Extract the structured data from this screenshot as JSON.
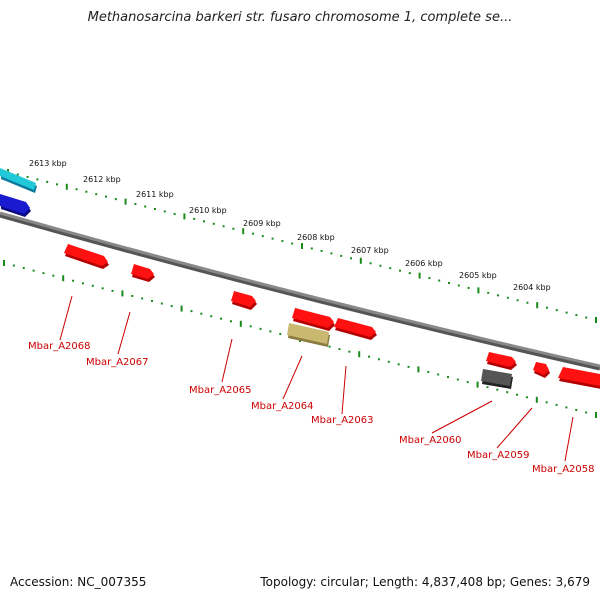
{
  "title": "Methanosarcina barkeri str. fusaro chromosome 1, complete se...",
  "footer": {
    "accession": "Accession: NC_007355",
    "topology": "Topology: circular; Length: 4,837,408 bp; Genes: 3,679"
  },
  "colors": {
    "gene_forward": "#ff1111",
    "gene_highlight": "#c8b870",
    "gene_gray": "#555555",
    "gene_blue": "#1a1ad0",
    "gene_cyan": "#20c8d8",
    "backbone": "#888888",
    "ticks": "#1a8a1a",
    "gene_label": "#cc0000"
  },
  "scale_labels": [
    "2613 kbp",
    "2612 kbp",
    "2611 kbp",
    "2610 kbp",
    "2609 kbp",
    "2608 kbp",
    "2607 kbp",
    "2606 kbp",
    "2605 kbp",
    "2604 kbp"
  ],
  "genes": [
    {
      "label": "Mbar_A2068"
    },
    {
      "label": "Mbar_A2067"
    },
    {
      "label": "Mbar_A2065"
    },
    {
      "label": "Mbar_A2064"
    },
    {
      "label": "Mbar_A2063"
    },
    {
      "label": "Mbar_A2060"
    },
    {
      "label": "Mbar_A2059"
    },
    {
      "label": "Mbar_A2058"
    }
  ]
}
